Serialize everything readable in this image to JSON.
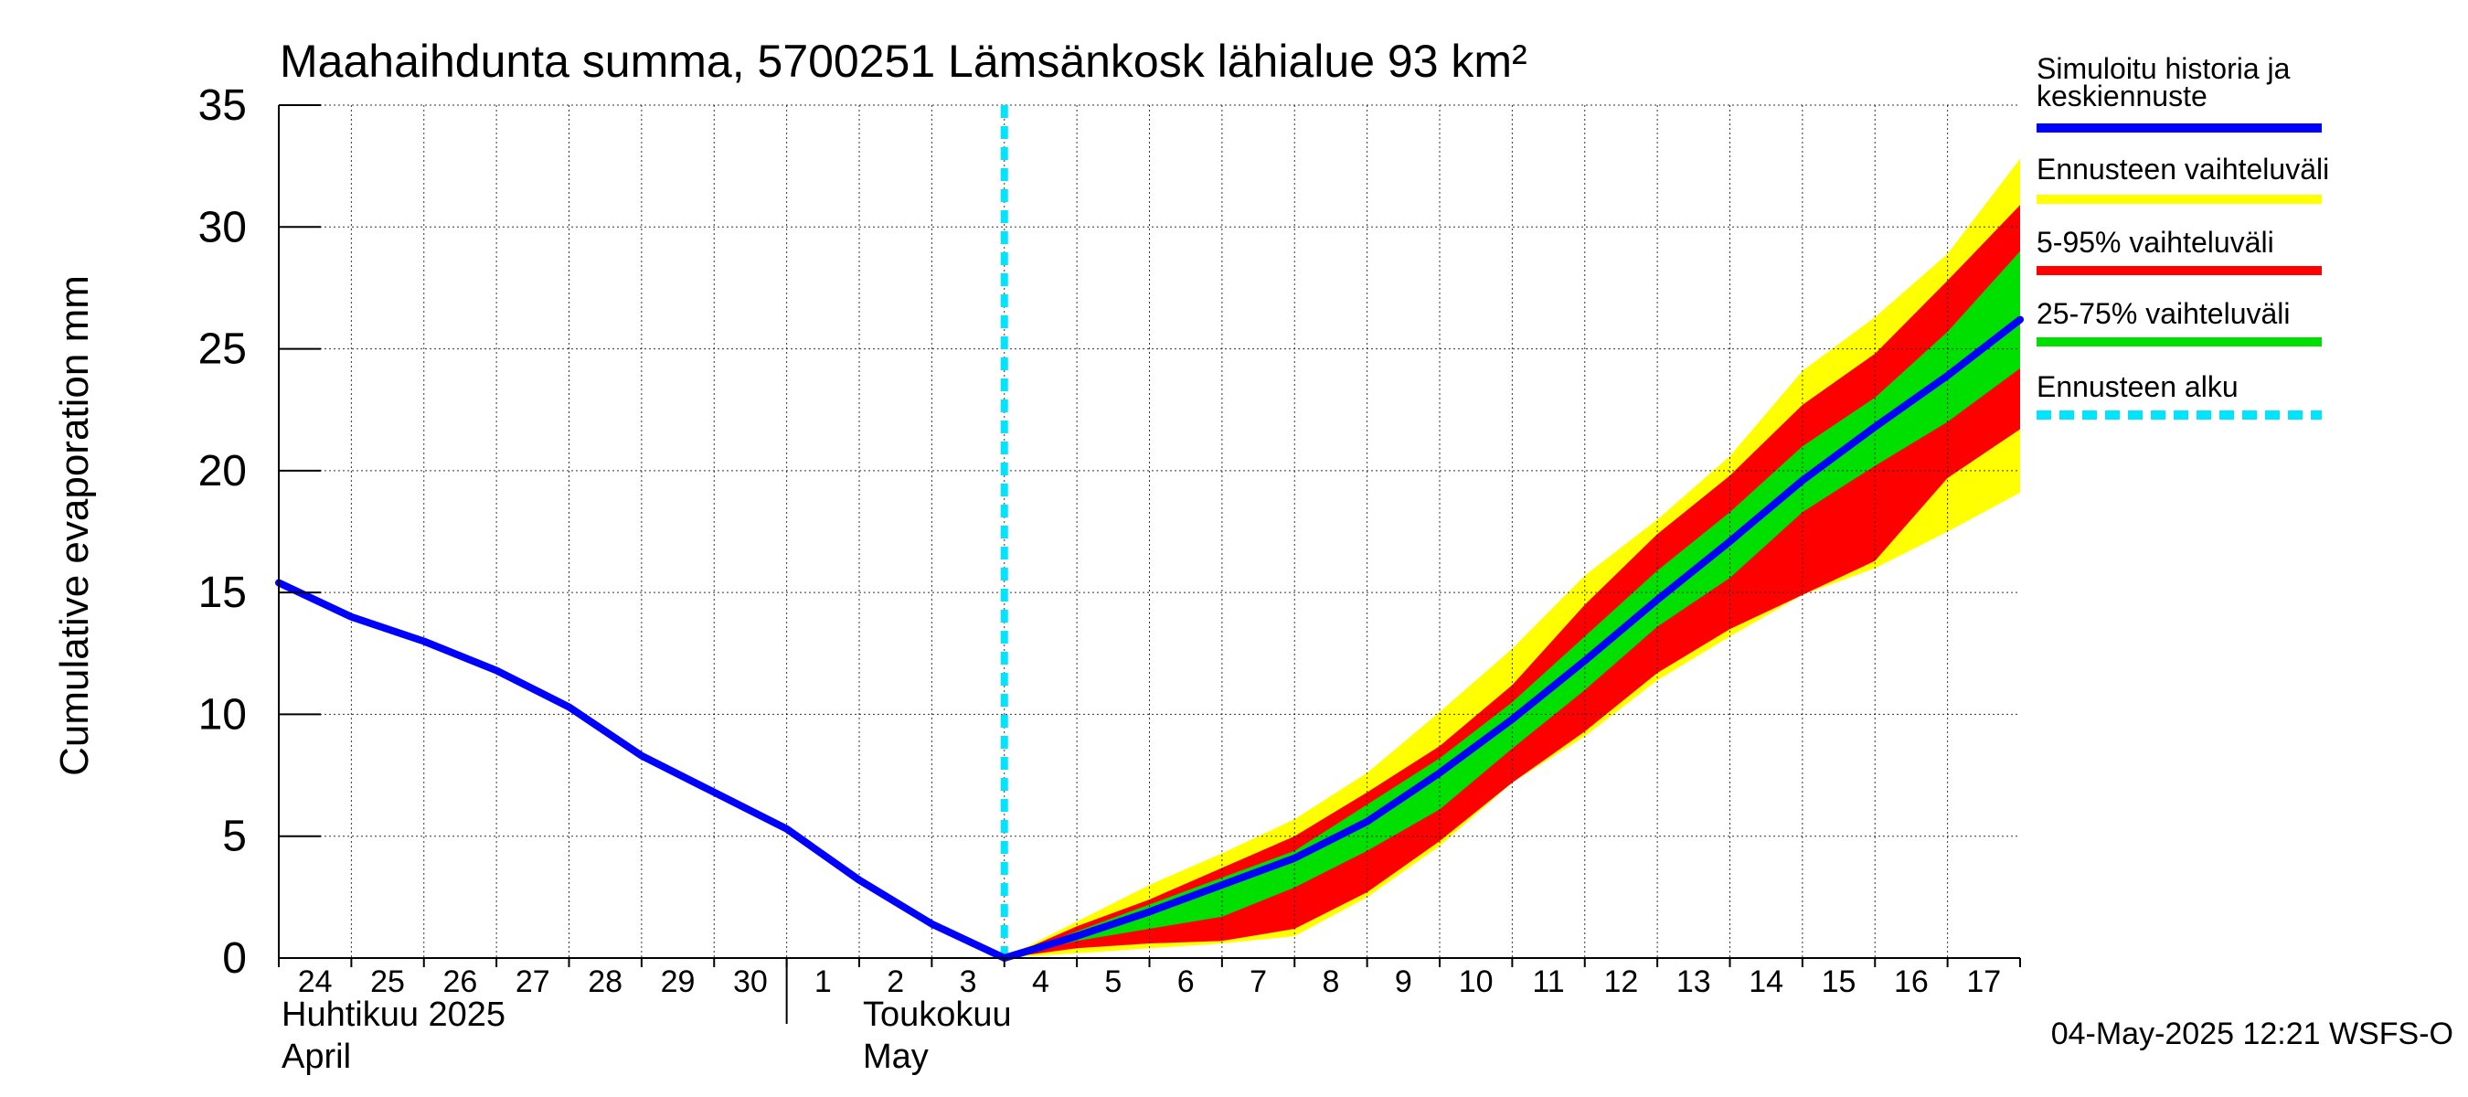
{
  "chart_data": {
    "type": "area",
    "title": "Maahaihdunta summa, 5700251 Lämsänkosk lähialue 93 km²",
    "ylabel": "Cumulative evaporation   mm",
    "ylim": [
      0,
      35
    ],
    "yticks": [
      0,
      5,
      10,
      15,
      20,
      25,
      30,
      35
    ],
    "x_start": "2025-04-24",
    "x_end": "2025-05-18",
    "x_tick_labels": [
      "24",
      "25",
      "26",
      "27",
      "28",
      "29",
      "30",
      "1",
      "2",
      "3",
      "4",
      "5",
      "6",
      "7",
      "8",
      "9",
      "10",
      "11",
      "12",
      "13",
      "14",
      "15",
      "16",
      "17"
    ],
    "month_labels": [
      {
        "line1": "Huhtikuu  2025",
        "line2": "April"
      },
      {
        "line1": "Toukokuu",
        "line2": "May"
      }
    ],
    "forecast_start": "2025-05-04",
    "grid": true,
    "legend_position": "right",
    "legend": [
      {
        "label": "Simuloitu historia ja keskiennuste",
        "color": "#0000ff",
        "style": "solid"
      },
      {
        "label": "Ennusteen vaihteluväli",
        "color": "#ffff00",
        "style": "solid"
      },
      {
        "label": "5-95% vaihteluväli",
        "color": "#ff0000",
        "style": "solid"
      },
      {
        "label": "25-75% vaihteluväli",
        "color": "#00e000",
        "style": "solid"
      },
      {
        "label": "Ennusteen alku",
        "color": "#00e5ff",
        "style": "dashed"
      }
    ],
    "series": [
      {
        "name": "Simuloitu historia ja keskiennuste",
        "color": "#0000ff",
        "x": [
          "2025-04-24",
          "2025-04-25",
          "2025-04-26",
          "2025-04-27",
          "2025-04-28",
          "2025-04-29",
          "2025-04-30",
          "2025-05-01",
          "2025-05-02",
          "2025-05-03",
          "2025-05-04",
          "2025-05-05",
          "2025-05-06",
          "2025-05-07",
          "2025-05-08",
          "2025-05-09",
          "2025-05-10",
          "2025-05-11",
          "2025-05-12",
          "2025-05-13",
          "2025-05-14",
          "2025-05-15",
          "2025-05-16",
          "2025-05-17",
          "2025-05-18"
        ],
        "values": [
          15.4,
          14.0,
          13.0,
          11.8,
          10.3,
          8.3,
          6.8,
          5.3,
          3.2,
          1.4,
          0.0,
          0.9,
          1.9,
          3.0,
          4.1,
          5.6,
          7.6,
          9.8,
          12.2,
          14.7,
          17.1,
          19.6,
          21.8,
          23.9,
          26.2
        ]
      }
    ],
    "bands": [
      {
        "name": "Ennusteen vaihteluväli",
        "color": "#ffff00",
        "x": [
          "2025-05-04",
          "2025-05-05",
          "2025-05-06",
          "2025-05-07",
          "2025-05-08",
          "2025-05-09",
          "2025-05-10",
          "2025-05-11",
          "2025-05-12",
          "2025-05-13",
          "2025-05-14",
          "2025-05-15",
          "2025-05-16",
          "2025-05-17",
          "2025-05-18"
        ],
        "upper": [
          0.0,
          1.5,
          3.0,
          4.3,
          5.7,
          7.6,
          10.1,
          12.7,
          15.7,
          18.0,
          20.6,
          24.1,
          26.3,
          28.9,
          32.8
        ],
        "lower": [
          0.0,
          0.2,
          0.4,
          0.6,
          0.9,
          2.5,
          4.6,
          7.2,
          9.1,
          11.4,
          13.2,
          14.9,
          16.0,
          17.5,
          19.1
        ]
      },
      {
        "name": "5-95% vaihteluväli",
        "color": "#ff0000",
        "x": [
          "2025-05-04",
          "2025-05-05",
          "2025-05-06",
          "2025-05-07",
          "2025-05-08",
          "2025-05-09",
          "2025-05-10",
          "2025-05-11",
          "2025-05-12",
          "2025-05-13",
          "2025-05-14",
          "2025-05-15",
          "2025-05-16",
          "2025-05-17",
          "2025-05-18"
        ],
        "upper": [
          0.0,
          1.3,
          2.4,
          3.7,
          5.0,
          6.8,
          8.7,
          11.2,
          14.5,
          17.4,
          19.8,
          22.7,
          24.8,
          27.8,
          30.9
        ],
        "lower": [
          0.0,
          0.4,
          0.6,
          0.7,
          1.2,
          2.7,
          4.8,
          7.2,
          9.3,
          11.7,
          13.5,
          14.9,
          16.3,
          19.7,
          21.7
        ]
      },
      {
        "name": "25-75% vaihteluväli",
        "color": "#00e000",
        "x": [
          "2025-05-04",
          "2025-05-05",
          "2025-05-06",
          "2025-05-07",
          "2025-05-08",
          "2025-05-09",
          "2025-05-10",
          "2025-05-11",
          "2025-05-12",
          "2025-05-13",
          "2025-05-14",
          "2025-05-15",
          "2025-05-16",
          "2025-05-17",
          "2025-05-18"
        ],
        "upper": [
          0.0,
          1.1,
          2.2,
          3.3,
          4.4,
          6.3,
          8.2,
          10.5,
          13.2,
          15.9,
          18.3,
          21.0,
          23.0,
          25.7,
          29.0
        ],
        "lower": [
          0.0,
          0.7,
          1.2,
          1.7,
          2.9,
          4.4,
          6.1,
          8.6,
          11.0,
          13.6,
          15.6,
          18.3,
          20.2,
          22.0,
          24.2
        ]
      }
    ]
  },
  "footer": {
    "timestamp": "04-May-2025 12:21 WSFS-O"
  }
}
